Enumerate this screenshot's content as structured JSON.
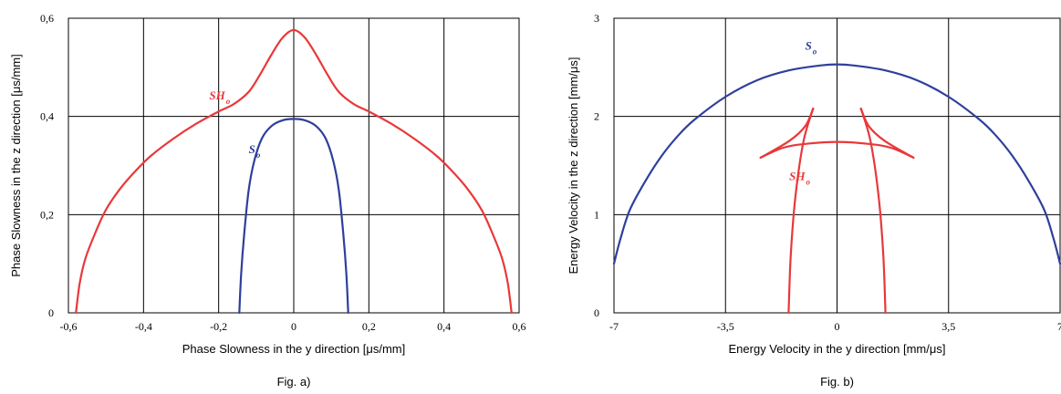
{
  "chart_data": [
    {
      "type": "line",
      "xlabel": "Phase Slowness in the y direction  [μs/mm]",
      "ylabel": "Phase Slowness in the z direction  [μs/mm]",
      "caption": "Fig. a)",
      "xlim": [
        -0.6,
        0.6
      ],
      "ylim": [
        0,
        0.6
      ],
      "xticks": [
        -0.6,
        -0.4,
        -0.2,
        0,
        0.2,
        0.4,
        0.6
      ],
      "xtick_labels": [
        "-0,6",
        "-0,4",
        "-0,2",
        "0",
        "0,2",
        "0,4",
        "0,6"
      ],
      "yticks": [
        0,
        0.2,
        0.4,
        0.6
      ],
      "ytick_labels": [
        "0",
        "0,2",
        "0,4",
        "0,6"
      ],
      "grid": true,
      "series": [
        {
          "name": "SH",
          "name_sub": "o",
          "color": "#e8383a",
          "points": [
            [
              -0.58,
              0.0
            ],
            [
              -0.57,
              0.06
            ],
            [
              -0.555,
              0.11
            ],
            [
              -0.53,
              0.16
            ],
            [
              -0.5,
              0.21
            ],
            [
              -0.46,
              0.255
            ],
            [
              -0.42,
              0.29
            ],
            [
              -0.38,
              0.32
            ],
            [
              -0.32,
              0.355
            ],
            [
              -0.26,
              0.385
            ],
            [
              -0.2,
              0.41
            ],
            [
              -0.16,
              0.425
            ],
            [
              -0.12,
              0.45
            ],
            [
              -0.09,
              0.485
            ],
            [
              -0.06,
              0.525
            ],
            [
              -0.03,
              0.56
            ],
            [
              0.0,
              0.576
            ],
            [
              0.03,
              0.56
            ],
            [
              0.06,
              0.525
            ],
            [
              0.09,
              0.485
            ],
            [
              0.12,
              0.45
            ],
            [
              0.16,
              0.425
            ],
            [
              0.2,
              0.41
            ],
            [
              0.26,
              0.385
            ],
            [
              0.32,
              0.355
            ],
            [
              0.38,
              0.32
            ],
            [
              0.42,
              0.29
            ],
            [
              0.46,
              0.255
            ],
            [
              0.5,
              0.21
            ],
            [
              0.53,
              0.16
            ],
            [
              0.555,
              0.11
            ],
            [
              0.57,
              0.06
            ],
            [
              0.58,
              0.0
            ]
          ]
        },
        {
          "name": "S",
          "name_sub": "o",
          "color": "#2e3f9c",
          "points": [
            [
              -0.145,
              0.0
            ],
            [
              -0.14,
              0.08
            ],
            [
              -0.132,
              0.16
            ],
            [
              -0.12,
              0.25
            ],
            [
              -0.105,
              0.31
            ],
            [
              -0.085,
              0.355
            ],
            [
              -0.06,
              0.38
            ],
            [
              -0.03,
              0.392
            ],
            [
              0.0,
              0.395
            ],
            [
              0.03,
              0.392
            ],
            [
              0.06,
              0.38
            ],
            [
              0.085,
              0.355
            ],
            [
              0.105,
              0.31
            ],
            [
              0.12,
              0.25
            ],
            [
              0.132,
              0.16
            ],
            [
              0.14,
              0.08
            ],
            [
              0.145,
              0.0
            ]
          ]
        }
      ],
      "annotations": [
        {
          "text": "SH",
          "sub": "o",
          "x": -0.225,
          "y": 0.435,
          "color": "#e8383a"
        },
        {
          "text": "S",
          "sub": "o",
          "x": -0.12,
          "y": 0.325,
          "color": "#2e3f9c"
        }
      ]
    },
    {
      "type": "line",
      "xlabel": "Energy Velocity in the y direction  [mm/μs]",
      "ylabel": "Energy Velocity in the z direction  [mm/μs]",
      "caption": "Fig. b)",
      "xlim": [
        -7,
        7
      ],
      "ylim": [
        0,
        3
      ],
      "xticks": [
        -7,
        -3.5,
        0,
        3.5,
        7
      ],
      "xtick_labels": [
        "-7",
        "-3,5",
        "0",
        "3,5",
        "7"
      ],
      "yticks": [
        0,
        1,
        2,
        3
      ],
      "ytick_labels": [
        "0",
        "1",
        "2",
        "3"
      ],
      "grid": true,
      "series": [
        {
          "name": "S",
          "name_sub": "o",
          "color": "#2e3f9c",
          "points": [
            [
              -7.0,
              0.5
            ],
            [
              -6.8,
              0.75
            ],
            [
              -6.5,
              1.05
            ],
            [
              -6.0,
              1.35
            ],
            [
              -5.5,
              1.6
            ],
            [
              -5.0,
              1.8
            ],
            [
              -4.5,
              1.96
            ],
            [
              -3.5,
              2.2
            ],
            [
              -2.5,
              2.37
            ],
            [
              -1.5,
              2.47
            ],
            [
              -0.5,
              2.52
            ],
            [
              0.0,
              2.53
            ],
            [
              0.5,
              2.52
            ],
            [
              1.5,
              2.47
            ],
            [
              2.5,
              2.37
            ],
            [
              3.5,
              2.2
            ],
            [
              4.5,
              1.96
            ],
            [
              5.0,
              1.8
            ],
            [
              5.5,
              1.6
            ],
            [
              6.0,
              1.35
            ],
            [
              6.5,
              1.05
            ],
            [
              6.8,
              0.75
            ],
            [
              7.0,
              0.5
            ]
          ]
        },
        {
          "name": "SH",
          "name_sub": "o",
          "color": "#e8383a",
          "segments": [
            [
              [
                -2.4,
                1.58
              ],
              [
                -1.7,
                1.68
              ],
              [
                -1.0,
                1.72
              ],
              [
                0.0,
                1.74
              ],
              [
                1.0,
                1.72
              ],
              [
                1.7,
                1.68
              ],
              [
                2.4,
                1.58
              ]
            ],
            [
              [
                -2.4,
                1.58
              ],
              [
                -1.5,
                1.75
              ],
              [
                -1.0,
                1.9
              ],
              [
                -0.75,
                2.08
              ]
            ],
            [
              [
                2.4,
                1.58
              ],
              [
                1.5,
                1.75
              ],
              [
                1.0,
                1.9
              ],
              [
                0.75,
                2.08
              ]
            ],
            [
              [
                -0.75,
                2.08
              ],
              [
                -1.05,
                1.75
              ],
              [
                -1.3,
                1.2
              ],
              [
                -1.45,
                0.6
              ],
              [
                -1.52,
                0.0
              ]
            ],
            [
              [
                0.75,
                2.08
              ],
              [
                1.05,
                1.75
              ],
              [
                1.3,
                1.2
              ],
              [
                1.45,
                0.6
              ],
              [
                1.52,
                0.0
              ]
            ]
          ]
        }
      ],
      "annotations": [
        {
          "text": "S",
          "sub": "o",
          "x": -1.0,
          "y": 2.68,
          "color": "#2e3f9c"
        },
        {
          "text": "SH",
          "sub": "o",
          "x": -1.5,
          "y": 1.35,
          "color": "#e8383a"
        }
      ]
    }
  ]
}
